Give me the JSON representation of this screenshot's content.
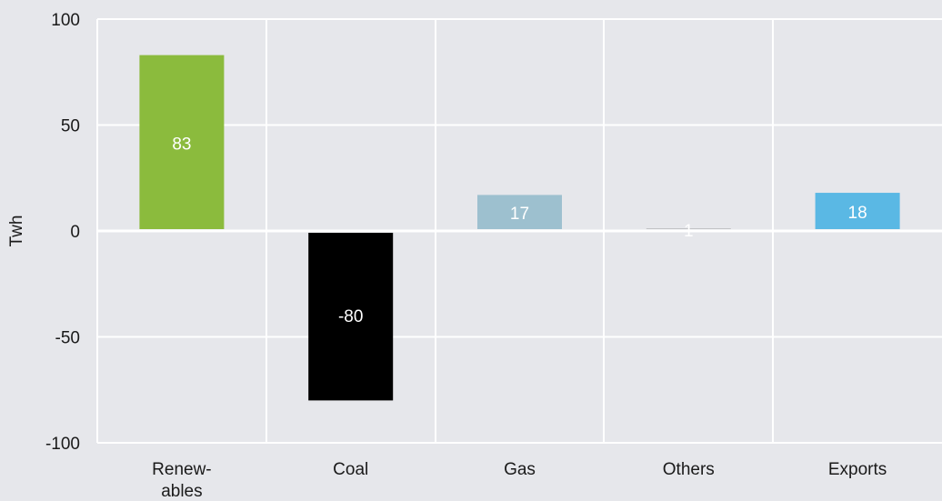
{
  "chart_data": {
    "type": "bar",
    "ylabel": "Twh",
    "xlabel": "",
    "ylim": [
      -100,
      100
    ],
    "yticks": [
      100,
      50,
      0,
      -50,
      -100
    ],
    "grid": true,
    "categories": [
      {
        "lines": [
          "Renew-",
          "ables"
        ]
      },
      {
        "lines": [
          "Coal"
        ]
      },
      {
        "lines": [
          "Gas"
        ]
      },
      {
        "lines": [
          "Others"
        ]
      },
      {
        "lines": [
          "Exports"
        ]
      }
    ],
    "values": [
      83,
      -80,
      17,
      1,
      18
    ],
    "value_labels": [
      "83",
      "-80",
      "17",
      "1",
      "18"
    ],
    "colors": [
      "#8bbb3d",
      "#000000",
      "#9dc0cf",
      "#7a7a7a",
      "#5ab8e4"
    ]
  }
}
